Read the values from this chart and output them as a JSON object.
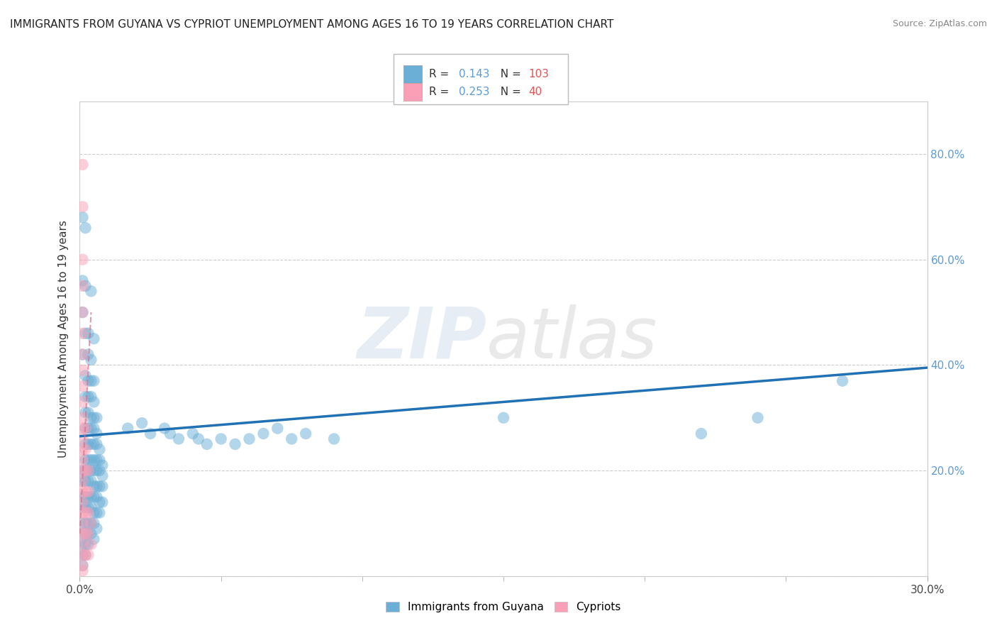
{
  "title": "IMMIGRANTS FROM GUYANA VS CYPRIOT UNEMPLOYMENT AMONG AGES 16 TO 19 YEARS CORRELATION CHART",
  "source": "Source: ZipAtlas.com",
  "ylabel": "Unemployment Among Ages 16 to 19 years",
  "xlim": [
    0.0,
    0.3
  ],
  "ylim": [
    0.0,
    0.9
  ],
  "legend1_r": "0.143",
  "legend1_n": "103",
  "legend2_r": "0.253",
  "legend2_n": "40",
  "blue_color": "#6baed6",
  "pink_color": "#fa9fb5",
  "blue_line_color": "#2171b5",
  "pink_line_color": "#d4728a",
  "blue_scatter": [
    [
      0.001,
      0.68
    ],
    [
      0.002,
      0.66
    ],
    [
      0.001,
      0.56
    ],
    [
      0.002,
      0.55
    ],
    [
      0.004,
      0.54
    ],
    [
      0.001,
      0.5
    ],
    [
      0.002,
      0.46
    ],
    [
      0.003,
      0.46
    ],
    [
      0.005,
      0.45
    ],
    [
      0.001,
      0.42
    ],
    [
      0.003,
      0.42
    ],
    [
      0.004,
      0.41
    ],
    [
      0.002,
      0.38
    ],
    [
      0.003,
      0.37
    ],
    [
      0.004,
      0.37
    ],
    [
      0.005,
      0.37
    ],
    [
      0.002,
      0.34
    ],
    [
      0.003,
      0.34
    ],
    [
      0.004,
      0.34
    ],
    [
      0.005,
      0.33
    ],
    [
      0.002,
      0.31
    ],
    [
      0.003,
      0.31
    ],
    [
      0.004,
      0.3
    ],
    [
      0.005,
      0.3
    ],
    [
      0.006,
      0.3
    ],
    [
      0.002,
      0.28
    ],
    [
      0.003,
      0.28
    ],
    [
      0.004,
      0.28
    ],
    [
      0.005,
      0.28
    ],
    [
      0.006,
      0.27
    ],
    [
      0.002,
      0.25
    ],
    [
      0.003,
      0.25
    ],
    [
      0.004,
      0.25
    ],
    [
      0.005,
      0.25
    ],
    [
      0.006,
      0.25
    ],
    [
      0.007,
      0.24
    ],
    [
      0.002,
      0.22
    ],
    [
      0.003,
      0.22
    ],
    [
      0.004,
      0.22
    ],
    [
      0.005,
      0.22
    ],
    [
      0.006,
      0.22
    ],
    [
      0.007,
      0.22
    ],
    [
      0.008,
      0.21
    ],
    [
      0.001,
      0.2
    ],
    [
      0.002,
      0.2
    ],
    [
      0.003,
      0.2
    ],
    [
      0.004,
      0.2
    ],
    [
      0.005,
      0.2
    ],
    [
      0.006,
      0.2
    ],
    [
      0.007,
      0.2
    ],
    [
      0.008,
      0.19
    ],
    [
      0.001,
      0.18
    ],
    [
      0.002,
      0.18
    ],
    [
      0.003,
      0.18
    ],
    [
      0.004,
      0.18
    ],
    [
      0.005,
      0.17
    ],
    [
      0.006,
      0.17
    ],
    [
      0.007,
      0.17
    ],
    [
      0.008,
      0.17
    ],
    [
      0.001,
      0.15
    ],
    [
      0.002,
      0.15
    ],
    [
      0.003,
      0.15
    ],
    [
      0.004,
      0.15
    ],
    [
      0.005,
      0.15
    ],
    [
      0.006,
      0.15
    ],
    [
      0.007,
      0.14
    ],
    [
      0.008,
      0.14
    ],
    [
      0.001,
      0.13
    ],
    [
      0.002,
      0.13
    ],
    [
      0.003,
      0.13
    ],
    [
      0.004,
      0.13
    ],
    [
      0.005,
      0.12
    ],
    [
      0.006,
      0.12
    ],
    [
      0.007,
      0.12
    ],
    [
      0.001,
      0.1
    ],
    [
      0.002,
      0.1
    ],
    [
      0.003,
      0.1
    ],
    [
      0.004,
      0.1
    ],
    [
      0.005,
      0.1
    ],
    [
      0.006,
      0.09
    ],
    [
      0.001,
      0.08
    ],
    [
      0.002,
      0.08
    ],
    [
      0.003,
      0.08
    ],
    [
      0.004,
      0.08
    ],
    [
      0.005,
      0.07
    ],
    [
      0.001,
      0.06
    ],
    [
      0.002,
      0.06
    ],
    [
      0.003,
      0.06
    ],
    [
      0.001,
      0.04
    ],
    [
      0.002,
      0.04
    ],
    [
      0.001,
      0.02
    ],
    [
      0.017,
      0.28
    ],
    [
      0.022,
      0.29
    ],
    [
      0.025,
      0.27
    ],
    [
      0.03,
      0.28
    ],
    [
      0.032,
      0.27
    ],
    [
      0.035,
      0.26
    ],
    [
      0.04,
      0.27
    ],
    [
      0.042,
      0.26
    ],
    [
      0.045,
      0.25
    ],
    [
      0.05,
      0.26
    ],
    [
      0.055,
      0.25
    ],
    [
      0.06,
      0.26
    ],
    [
      0.065,
      0.27
    ],
    [
      0.07,
      0.28
    ],
    [
      0.075,
      0.26
    ],
    [
      0.08,
      0.27
    ],
    [
      0.09,
      0.26
    ],
    [
      0.15,
      0.3
    ],
    [
      0.22,
      0.27
    ],
    [
      0.24,
      0.3
    ],
    [
      0.27,
      0.37
    ]
  ],
  "pink_scatter": [
    [
      0.001,
      0.78
    ],
    [
      0.001,
      0.7
    ],
    [
      0.001,
      0.6
    ],
    [
      0.001,
      0.55
    ],
    [
      0.001,
      0.5
    ],
    [
      0.001,
      0.46
    ],
    [
      0.001,
      0.42
    ],
    [
      0.001,
      0.39
    ],
    [
      0.001,
      0.36
    ],
    [
      0.001,
      0.33
    ],
    [
      0.001,
      0.3
    ],
    [
      0.001,
      0.28
    ],
    [
      0.001,
      0.26
    ],
    [
      0.001,
      0.24
    ],
    [
      0.001,
      0.22
    ],
    [
      0.001,
      0.2
    ],
    [
      0.001,
      0.18
    ],
    [
      0.001,
      0.16
    ],
    [
      0.001,
      0.14
    ],
    [
      0.001,
      0.12
    ],
    [
      0.001,
      0.1
    ],
    [
      0.001,
      0.08
    ],
    [
      0.001,
      0.06
    ],
    [
      0.001,
      0.04
    ],
    [
      0.001,
      0.02
    ],
    [
      0.001,
      0.01
    ],
    [
      0.002,
      0.28
    ],
    [
      0.002,
      0.24
    ],
    [
      0.002,
      0.2
    ],
    [
      0.002,
      0.16
    ],
    [
      0.002,
      0.12
    ],
    [
      0.002,
      0.08
    ],
    [
      0.002,
      0.04
    ],
    [
      0.003,
      0.2
    ],
    [
      0.003,
      0.16
    ],
    [
      0.003,
      0.12
    ],
    [
      0.003,
      0.08
    ],
    [
      0.003,
      0.04
    ],
    [
      0.004,
      0.1
    ],
    [
      0.004,
      0.06
    ]
  ],
  "blue_trend_x": [
    0.0,
    0.3
  ],
  "blue_trend_y": [
    0.265,
    0.395
  ],
  "pink_trend_x": [
    0.0,
    0.004
  ],
  "pink_trend_y": [
    0.08,
    0.5
  ]
}
